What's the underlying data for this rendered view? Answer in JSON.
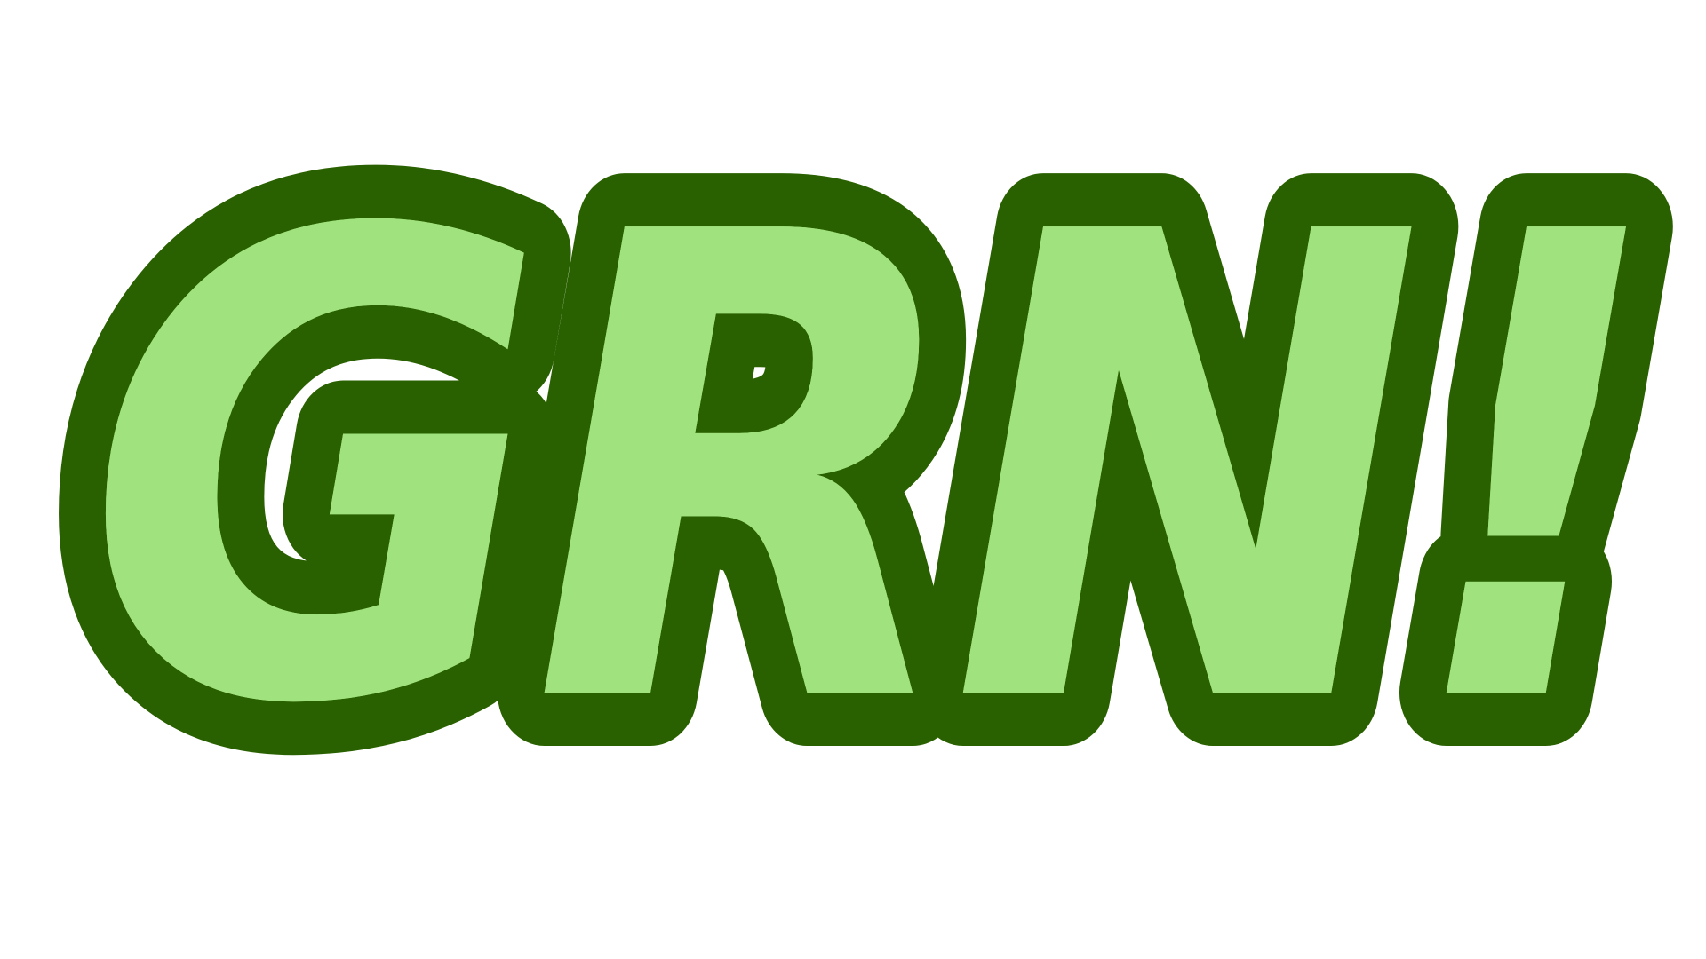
{
  "logo": {
    "text": "GRN!",
    "colors": {
      "fill": "#9FE27E",
      "outline": "#2A6100",
      "background": "#FFFFFF"
    }
  }
}
